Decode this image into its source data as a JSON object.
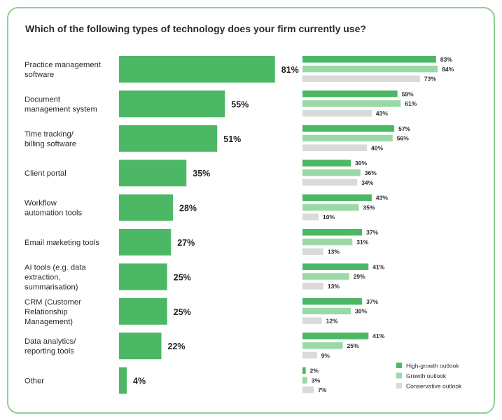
{
  "chart_data": {
    "type": "bar",
    "title": "Which of the following types of technology does your firm currently use?",
    "categories": [
      [
        "Practice management",
        "software"
      ],
      [
        "Document",
        "management system"
      ],
      [
        "Time tracking/",
        "billing software"
      ],
      [
        "Client portal"
      ],
      [
        "Workflow",
        "automation tools"
      ],
      [
        "Email marketing tools"
      ],
      [
        "AI tools (e.g. data",
        "extraction,",
        "summarisation)"
      ],
      [
        "CRM (Customer",
        "Relationship",
        "Management)"
      ],
      [
        "Data analytics/",
        "reporting tools"
      ],
      [
        "Other"
      ]
    ],
    "overall": {
      "values": [
        81,
        55,
        51,
        35,
        28,
        27,
        25,
        25,
        22,
        4
      ],
      "color": "#4cb866"
    },
    "series": [
      {
        "name": "High-growth outlook",
        "color": "#4cb866",
        "values": [
          83,
          59,
          57,
          30,
          43,
          37,
          41,
          37,
          41,
          2
        ]
      },
      {
        "name": "Growth outlook",
        "color": "#9ad9a7",
        "values": [
          84,
          61,
          56,
          36,
          35,
          31,
          29,
          30,
          25,
          3
        ]
      },
      {
        "name": "Conservative outlook",
        "color": "#dadada",
        "values": [
          73,
          43,
          40,
          34,
          10,
          13,
          13,
          12,
          9,
          7
        ]
      }
    ],
    "value_suffix": "%",
    "legend_position": "bottom-right",
    "ylim": [
      0,
      100
    ]
  }
}
